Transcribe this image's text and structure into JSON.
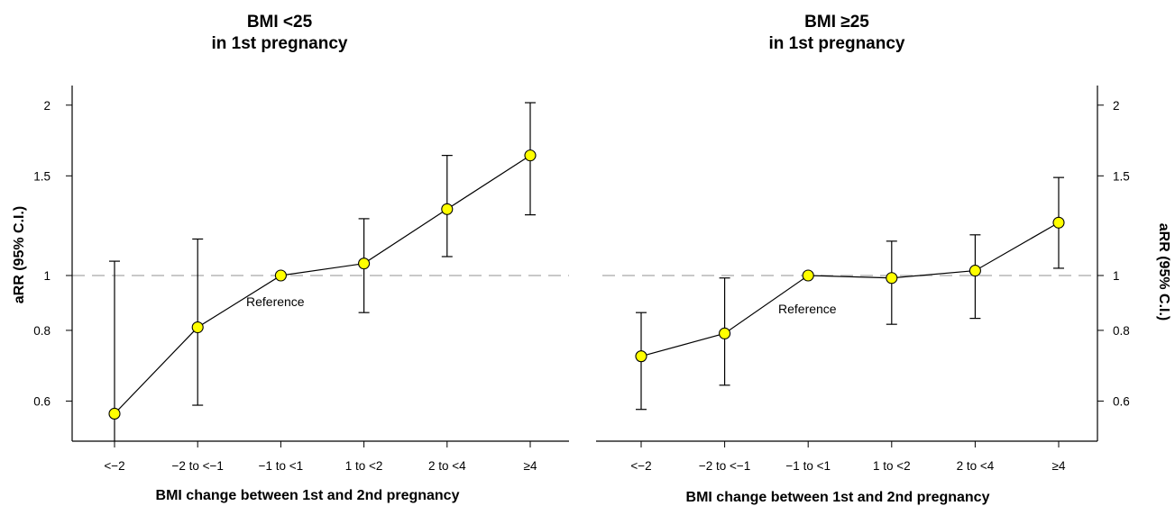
{
  "chart_data": [
    {
      "type": "line",
      "title": "BMI <25",
      "subtitle": "in 1st pregnancy",
      "xlabel": "BMI change between 1st and 2nd pregnancy",
      "ylabel": "aRR (95% C.I.)",
      "y_axis_side": "left",
      "y_scale": "log",
      "ylim": [
        0.5,
        2.2
      ],
      "yticks": [
        "0.6",
        "0.8",
        "1",
        "1.5",
        "2"
      ],
      "categories": [
        "<−2",
        "−2 to <−1",
        "−1 to <1",
        "1 to <2",
        "2 to <4",
        "≥4"
      ],
      "series": [
        {
          "values": [
            0.57,
            0.81,
            1.0,
            1.05,
            1.31,
            1.63
          ],
          "ci_low": [
            0.5,
            0.59,
            1.0,
            0.86,
            1.08,
            1.28
          ],
          "ci_high": [
            1.06,
            1.16,
            1.0,
            1.26,
            1.63,
            2.02
          ]
        }
      ],
      "reference_line": 1,
      "annotation": "Reference",
      "marker_color": "#ffff00",
      "reference_line_color": "#c8c8c8"
    },
    {
      "type": "line",
      "title": "BMI ≥25",
      "subtitle": "in 1st pregnancy",
      "xlabel": "BMI change between 1st and 2nd pregnancy",
      "ylabel": "aRR (95% C.I.)",
      "y_axis_side": "right",
      "y_scale": "log",
      "ylim": [
        0.5,
        2.2
      ],
      "yticks": [
        "0.6",
        "0.8",
        "1",
        "1.5",
        "2"
      ],
      "categories": [
        "<−2",
        "−2 to <−1",
        "−1 to <1",
        "1 to <2",
        "2 to <4",
        "≥4"
      ],
      "series": [
        {
          "values": [
            0.72,
            0.79,
            1.0,
            0.99,
            1.02,
            1.24
          ],
          "ci_low": [
            0.58,
            0.64,
            1.0,
            0.82,
            0.84,
            1.03
          ],
          "ci_high": [
            0.86,
            0.99,
            1.0,
            1.15,
            1.18,
            1.49
          ]
        }
      ],
      "reference_line": 1,
      "annotation": "Reference",
      "marker_color": "#ffff00",
      "reference_line_color": "#c8c8c8"
    }
  ]
}
